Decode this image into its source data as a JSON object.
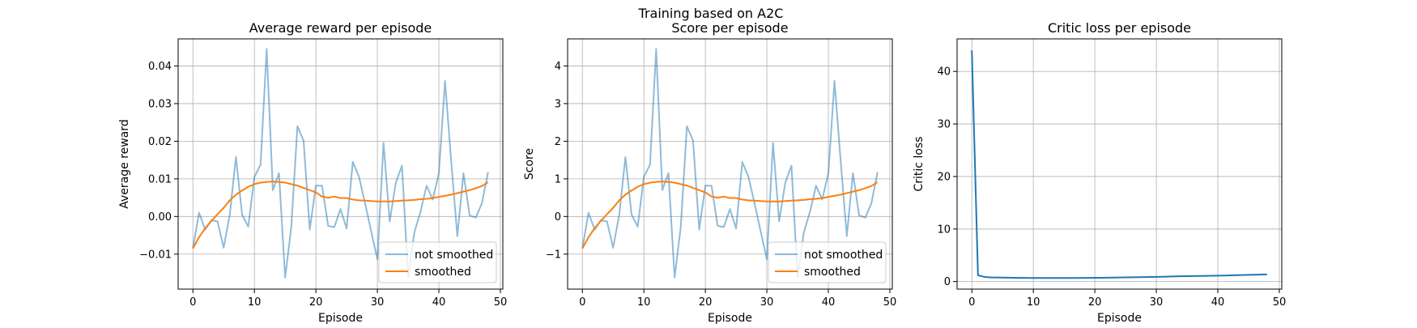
{
  "figure": {
    "suptitle": "Training based on A2C"
  },
  "chart_data": [
    {
      "type": "line",
      "title": "Average reward per episode",
      "xlabel": "Episode",
      "ylabel": "Average reward",
      "xlim": [
        -2.4,
        50.4
      ],
      "ylim": [
        -0.0193,
        0.0472
      ],
      "xticks": [
        0,
        10,
        20,
        30,
        40,
        50
      ],
      "yticks": [
        -0.01,
        0.0,
        0.01,
        0.02,
        0.03,
        0.04
      ],
      "ytick_labels": [
        "−0.01",
        "0.00",
        "0.01",
        "0.02",
        "0.03",
        "0.04"
      ],
      "grid": true,
      "legend_position": "lower-right",
      "x": [
        0,
        1,
        2,
        3,
        4,
        5,
        6,
        7,
        8,
        9,
        10,
        11,
        12,
        13,
        14,
        15,
        16,
        17,
        18,
        19,
        20,
        21,
        22,
        23,
        24,
        25,
        26,
        27,
        28,
        29,
        30,
        31,
        32,
        33,
        34,
        35,
        36,
        37,
        38,
        39,
        40,
        41,
        42,
        43,
        44,
        45,
        46,
        47,
        48
      ],
      "series": [
        {
          "name": "not smoothed",
          "color": "#1f77b4",
          "alpha": 0.5,
          "values": [
            -0.0085,
            0.001,
            -0.0035,
            -0.001,
            -0.0013,
            -0.0083,
            0.0005,
            0.0158,
            0.0005,
            -0.0027,
            0.0105,
            0.0138,
            0.0445,
            0.007,
            0.0115,
            -0.0162,
            -0.0028,
            0.024,
            0.0201,
            -0.0035,
            0.0082,
            0.0082,
            -0.0025,
            -0.0028,
            0.002,
            -0.0032,
            0.0145,
            0.0106,
            0.0035,
            -0.004,
            -0.0114,
            0.0196,
            -0.0013,
            0.009,
            0.0135,
            -0.0162,
            -0.0043,
            0.0012,
            0.0082,
            0.0045,
            0.0115,
            0.036,
            0.0148,
            -0.0052,
            0.0115,
            0.0003,
            -0.0003,
            0.0035,
            0.0118
          ]
        },
        {
          "name": "smoothed",
          "color": "#ff7f0e",
          "alpha": 1,
          "values": [
            -0.0085,
            -0.0055,
            -0.0031,
            -0.0012,
            0.0006,
            0.0023,
            0.0043,
            0.0058,
            0.0069,
            0.0079,
            0.0086,
            0.009,
            0.0092,
            0.0093,
            0.0092,
            0.009,
            0.0086,
            0.0082,
            0.0076,
            0.007,
            0.0064,
            0.0053,
            0.005,
            0.0053,
            0.0049,
            0.0049,
            0.0045,
            0.0043,
            0.0042,
            0.0041,
            0.004,
            0.004,
            0.004,
            0.0041,
            0.0042,
            0.0043,
            0.0044,
            0.0046,
            0.0047,
            0.0049,
            0.0052,
            0.0055,
            0.0058,
            0.0062,
            0.0066,
            0.007,
            0.0075,
            0.0081,
            0.0091
          ]
        }
      ]
    },
    {
      "type": "line",
      "title": "Score per episode",
      "xlabel": "Episode",
      "ylabel": "Score",
      "xlim": [
        -2.4,
        50.4
      ],
      "ylim": [
        -1.93,
        4.72
      ],
      "xticks": [
        0,
        10,
        20,
        30,
        40,
        50
      ],
      "yticks": [
        -1,
        0,
        1,
        2,
        3,
        4
      ],
      "ytick_labels": [
        "−1",
        "0",
        "1",
        "2",
        "3",
        "4"
      ],
      "grid": true,
      "legend_position": "lower-right",
      "x": [
        0,
        1,
        2,
        3,
        4,
        5,
        6,
        7,
        8,
        9,
        10,
        11,
        12,
        13,
        14,
        15,
        16,
        17,
        18,
        19,
        20,
        21,
        22,
        23,
        24,
        25,
        26,
        27,
        28,
        29,
        30,
        31,
        32,
        33,
        34,
        35,
        36,
        37,
        38,
        39,
        40,
        41,
        42,
        43,
        44,
        45,
        46,
        47,
        48
      ],
      "series": [
        {
          "name": "not smoothed",
          "color": "#1f77b4",
          "alpha": 0.5,
          "values": [
            -0.85,
            0.1,
            -0.35,
            -0.1,
            -0.13,
            -0.83,
            0.05,
            1.58,
            0.05,
            -0.27,
            1.05,
            1.38,
            4.45,
            0.7,
            1.15,
            -1.62,
            -0.28,
            2.4,
            2.01,
            -0.35,
            0.82,
            0.82,
            -0.25,
            -0.28,
            0.2,
            -0.32,
            1.45,
            1.06,
            0.35,
            -0.4,
            -1.14,
            1.96,
            -0.13,
            0.9,
            1.35,
            -1.62,
            -0.43,
            0.12,
            0.82,
            0.45,
            1.15,
            3.6,
            1.48,
            -0.52,
            1.15,
            0.03,
            -0.03,
            0.35,
            1.18
          ]
        },
        {
          "name": "smoothed",
          "color": "#ff7f0e",
          "alpha": 1,
          "values": [
            -0.85,
            -0.55,
            -0.31,
            -0.12,
            0.06,
            0.23,
            0.43,
            0.58,
            0.69,
            0.79,
            0.86,
            0.9,
            0.92,
            0.93,
            0.92,
            0.9,
            0.86,
            0.82,
            0.76,
            0.7,
            0.64,
            0.53,
            0.5,
            0.53,
            0.49,
            0.49,
            0.45,
            0.43,
            0.42,
            0.41,
            0.4,
            0.4,
            0.4,
            0.41,
            0.42,
            0.43,
            0.44,
            0.46,
            0.47,
            0.49,
            0.52,
            0.55,
            0.58,
            0.62,
            0.66,
            0.7,
            0.75,
            0.81,
            0.91
          ]
        }
      ]
    },
    {
      "type": "line",
      "title": "Critic loss per episode",
      "xlabel": "Episode",
      "ylabel": "Critic loss",
      "xlim": [
        -2.4,
        50.4
      ],
      "ylim": [
        -1.44,
        46.2
      ],
      "xticks": [
        0,
        10,
        20,
        30,
        40,
        50
      ],
      "yticks": [
        0,
        10,
        20,
        30,
        40
      ],
      "ytick_labels": [
        "0",
        "10",
        "20",
        "30",
        "40"
      ],
      "grid": true,
      "legend_position": "none",
      "x": [
        0,
        1,
        2,
        3,
        4,
        5,
        6,
        7,
        8,
        9,
        10,
        11,
        12,
        13,
        14,
        15,
        16,
        17,
        18,
        19,
        20,
        21,
        22,
        23,
        24,
        25,
        26,
        27,
        28,
        29,
        30,
        31,
        32,
        33,
        34,
        35,
        36,
        37,
        38,
        39,
        40,
        41,
        42,
        43,
        44,
        45,
        46,
        47,
        48
      ],
      "series": [
        {
          "color": "#1f77b4",
          "alpha": 1,
          "values": [
            44,
            1.2,
            0.9,
            0.8,
            0.78,
            0.76,
            0.74,
            0.72,
            0.7,
            0.69,
            0.68,
            0.67,
            0.67,
            0.67,
            0.67,
            0.67,
            0.67,
            0.68,
            0.69,
            0.7,
            0.71,
            0.72,
            0.74,
            0.76,
            0.78,
            0.8,
            0.82,
            0.84,
            0.86,
            0.88,
            0.9,
            0.92,
            0.95,
            0.98,
            1.0,
            1.02,
            1.04,
            1.06,
            1.08,
            1.1,
            1.12,
            1.15,
            1.18,
            1.21,
            1.24,
            1.27,
            1.3,
            1.33,
            1.36
          ]
        }
      ]
    }
  ]
}
